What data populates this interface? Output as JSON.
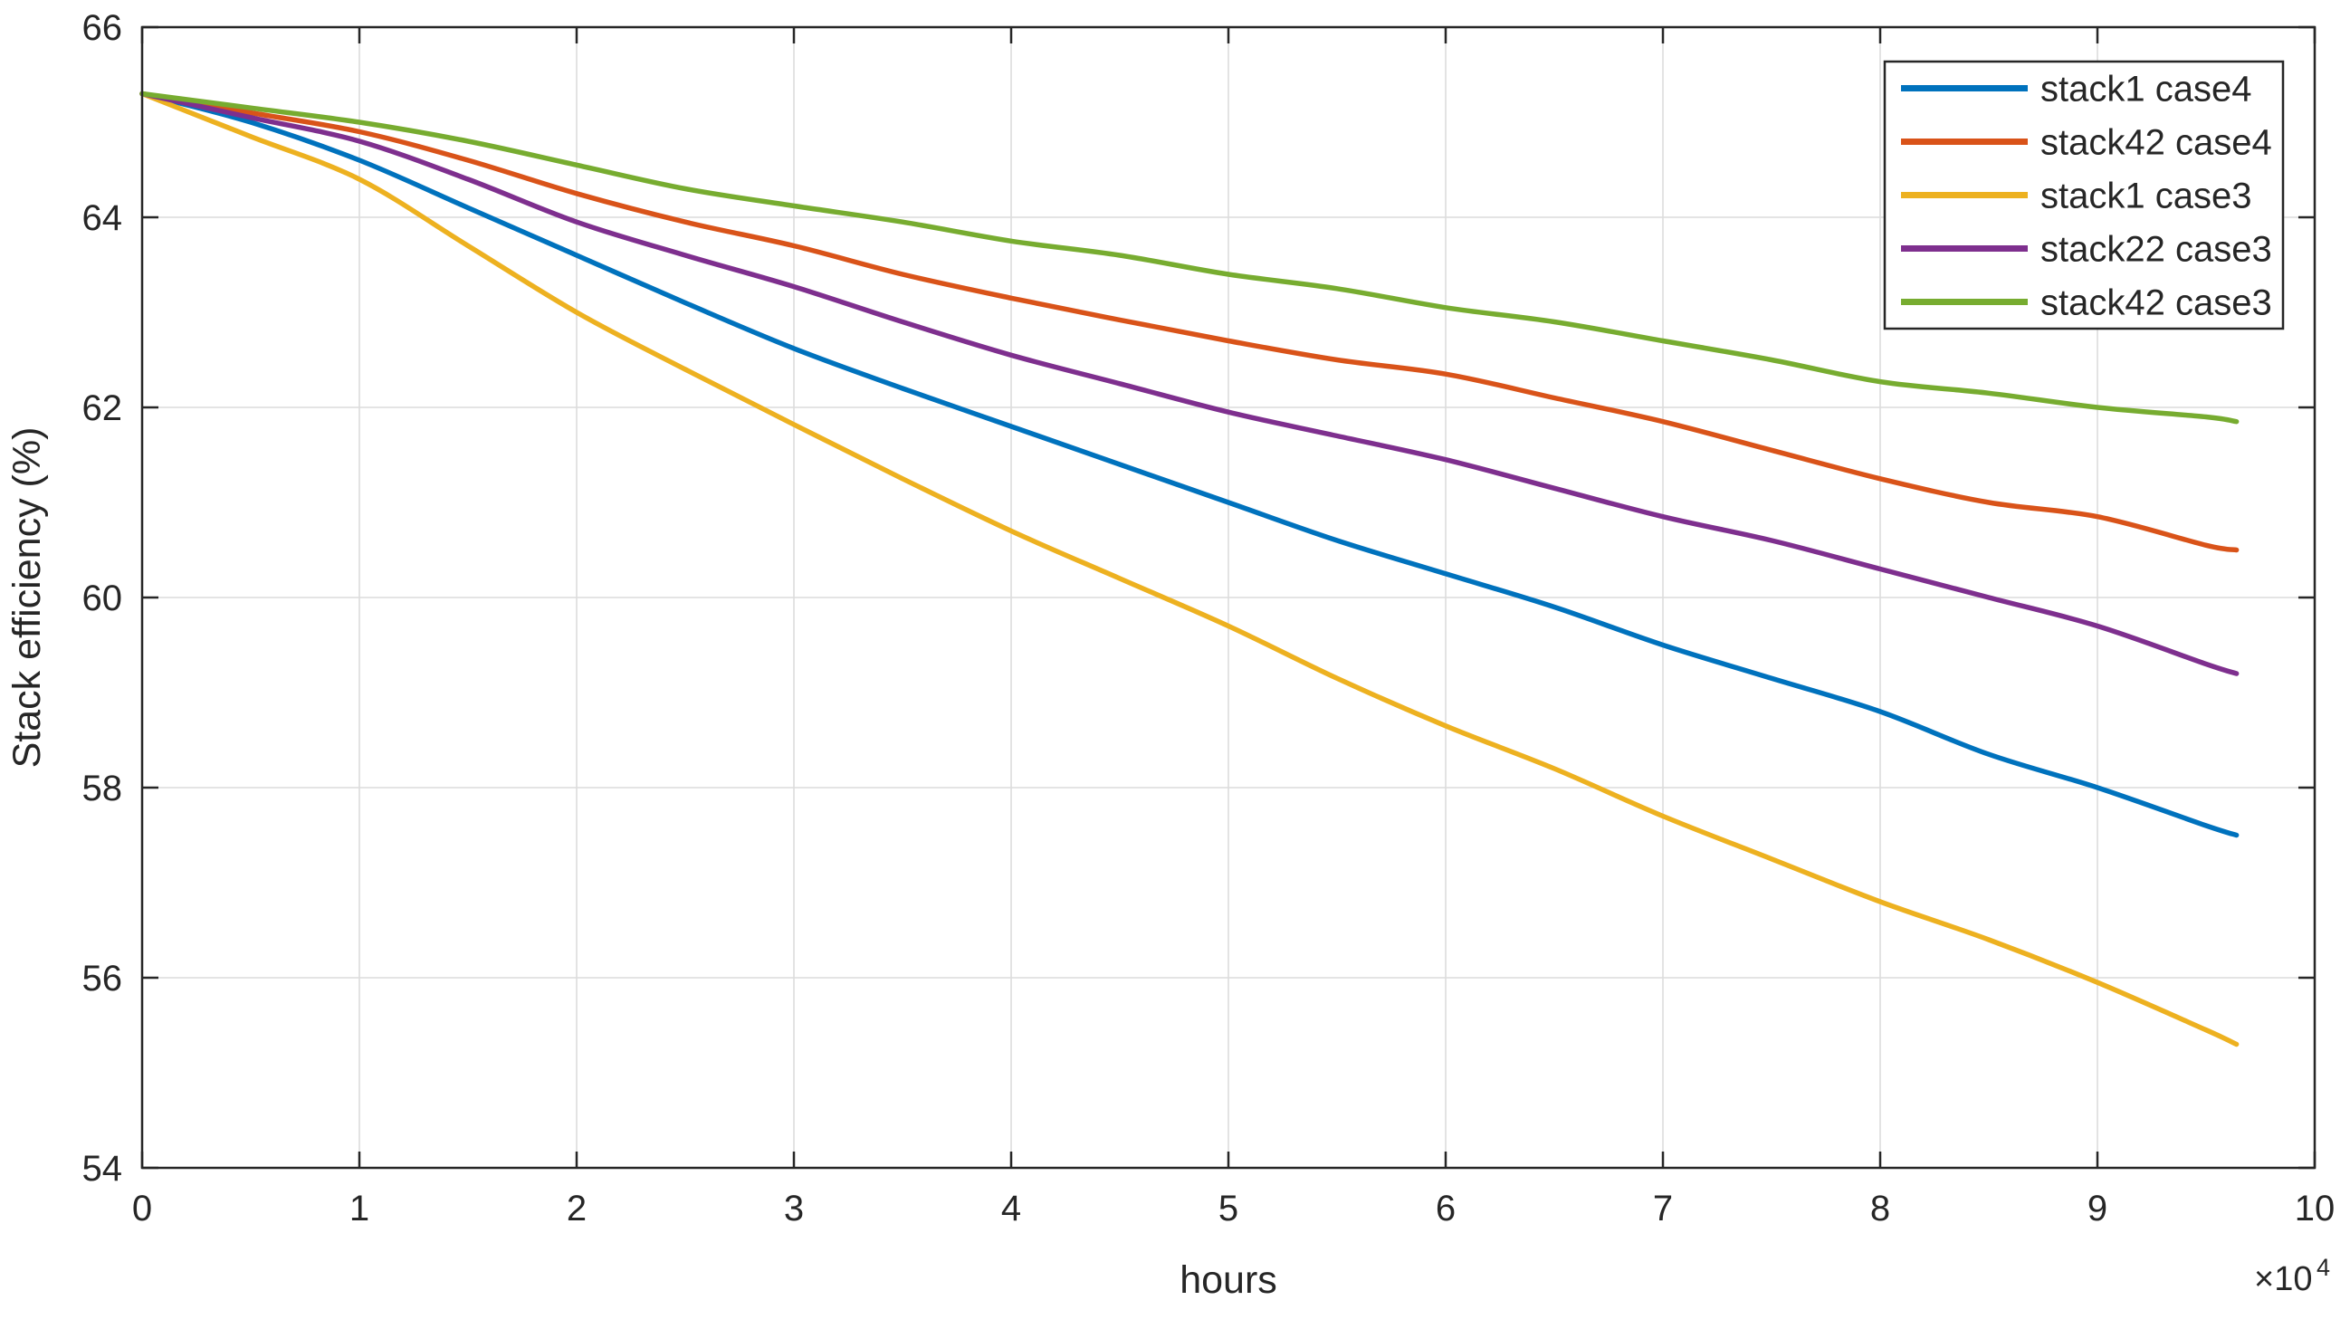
{
  "figure": {
    "background": "#ffffff"
  },
  "chart_data": {
    "type": "line",
    "title": "",
    "xlabel": "hours",
    "ylabel": "Stack efficiency (%)",
    "x_exponent_base": "×10",
    "x_exponent_power": "4",
    "xlim": [
      0,
      10
    ],
    "ylim": [
      54,
      66
    ],
    "xticks": [
      0,
      1,
      2,
      3,
      4,
      5,
      6,
      7,
      8,
      9,
      10
    ],
    "yticks": [
      54,
      56,
      58,
      60,
      62,
      64,
      66
    ],
    "grid": true,
    "legend_position": "top-right",
    "axis_color": "#262626",
    "grid_color": "#dcdcdc",
    "x": [
      0,
      0.5,
      1,
      1.5,
      2,
      2.5,
      3,
      3.5,
      4,
      4.5,
      5,
      5.5,
      6,
      6.5,
      7,
      7.5,
      8,
      8.5,
      9,
      9.5,
      9.64
    ],
    "series": [
      {
        "name": "stack1 case4",
        "color": "#0072BD",
        "values": [
          65.3,
          65.0,
          64.6,
          64.1,
          63.6,
          63.1,
          62.62,
          62.2,
          61.8,
          61.4,
          61.0,
          60.6,
          60.25,
          59.9,
          59.5,
          59.15,
          58.8,
          58.35,
          58.0,
          57.6,
          57.5
        ]
      },
      {
        "name": "stack42 case4",
        "color": "#D95319",
        "values": [
          65.3,
          65.1,
          64.9,
          64.6,
          64.25,
          63.95,
          63.7,
          63.4,
          63.15,
          62.92,
          62.7,
          62.5,
          62.35,
          62.1,
          61.85,
          61.55,
          61.25,
          61.0,
          60.85,
          60.55,
          60.5
        ]
      },
      {
        "name": "stack1 case3",
        "color": "#EDB120",
        "values": [
          65.3,
          64.85,
          64.4,
          63.7,
          63.0,
          62.4,
          61.82,
          61.25,
          60.7,
          60.2,
          59.7,
          59.15,
          58.65,
          58.2,
          57.7,
          57.25,
          56.8,
          56.4,
          55.95,
          55.45,
          55.3
        ]
      },
      {
        "name": "stack22 case3",
        "color": "#7E2F8E",
        "values": [
          65.3,
          65.05,
          64.8,
          64.4,
          63.95,
          63.6,
          63.27,
          62.9,
          62.55,
          62.25,
          61.95,
          61.7,
          61.45,
          61.15,
          60.85,
          60.6,
          60.3,
          60.0,
          59.7,
          59.3,
          59.2
        ]
      },
      {
        "name": "stack42 case3",
        "color": "#77AC30",
        "values": [
          65.3,
          65.15,
          65.0,
          64.8,
          64.55,
          64.3,
          64.12,
          63.95,
          63.75,
          63.6,
          63.4,
          63.25,
          63.05,
          62.9,
          62.7,
          62.5,
          62.27,
          62.15,
          62.0,
          61.9,
          61.85
        ]
      }
    ]
  }
}
